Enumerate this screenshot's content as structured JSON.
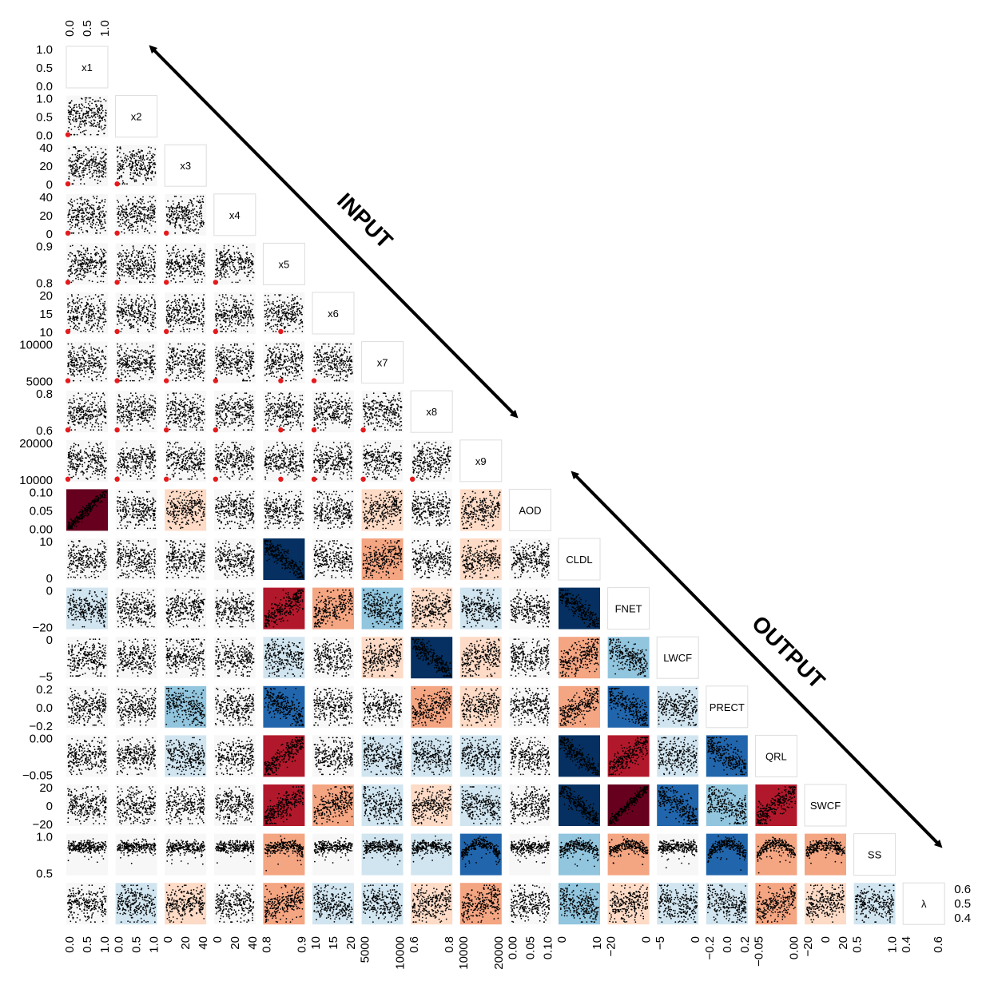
{
  "chart_data": {
    "type": "scatter",
    "variables": [
      "x1",
      "x2",
      "x3",
      "x4",
      "x5",
      "x6",
      "x7",
      "x8",
      "x9",
      "AOD",
      "CLDL",
      "FNET",
      "LWCF",
      "PRECT",
      "QRL",
      "SWCF",
      "SS",
      "λ"
    ],
    "ticks": [
      [
        "0.0",
        "0.5",
        "1.0"
      ],
      [
        "0.0",
        "0.5",
        "1.0"
      ],
      [
        "0",
        "20",
        "40"
      ],
      [
        "0",
        "20",
        "40"
      ],
      [
        "0.8",
        "0.9"
      ],
      [
        "10",
        "15",
        "20"
      ],
      [
        "5000",
        "10000"
      ],
      [
        "0.6",
        "0.8"
      ],
      [
        "10000",
        "20000"
      ],
      [
        "0.00",
        "0.05",
        "0.10"
      ],
      [
        "0",
        "10"
      ],
      [
        "−20",
        "0"
      ],
      [
        "−5",
        "0"
      ],
      [
        "−0.2",
        "0.0",
        "0.2"
      ],
      [
        "−0.05",
        "0.00"
      ],
      [
        "−20",
        "0",
        "20"
      ],
      [
        "0.5",
        "1.0"
      ],
      [
        "0.4",
        "0.5",
        "0.6"
      ]
    ],
    "correlation_matrix_lower": {
      "AOD": [
        0.95,
        0.0,
        0.2,
        0.0,
        0.05,
        0.0,
        0.15,
        0.0,
        0.1
      ],
      "CLDL": [
        0.0,
        0.0,
        0.0,
        0.0,
        -0.8,
        -0.05,
        0.3,
        0.0,
        0.2,
        0.0
      ],
      "FNET": [
        -0.1,
        0.0,
        0.0,
        0.0,
        0.7,
        0.4,
        -0.3,
        0.1,
        -0.1,
        -0.05,
        -0.8
      ],
      "LWCF": [
        0.0,
        0.0,
        0.0,
        0.0,
        -0.2,
        0.0,
        0.2,
        -0.8,
        0.2,
        -0.05,
        0.45,
        -0.45
      ],
      "PRECT": [
        0.05,
        0.0,
        -0.35,
        0.0,
        -0.6,
        0.0,
        -0.05,
        0.3,
        0.2,
        0.0,
        0.5,
        -0.6,
        -0.1
      ],
      "QRL": [
        0.0,
        0.0,
        -0.1,
        0.05,
        0.8,
        0.0,
        -0.2,
        -0.1,
        -0.1,
        0.0,
        -0.85,
        0.7,
        -0.15,
        -0.6
      ],
      "SWCF": [
        -0.05,
        0.0,
        -0.05,
        0.0,
        0.7,
        0.35,
        -0.2,
        0.15,
        -0.1,
        0.0,
        -0.85,
        0.95,
        -0.6,
        -0.4,
        0.7
      ],
      "SS": [
        0.0,
        0.05,
        0.05,
        0.0,
        0.3,
        0.05,
        -0.1,
        -0.15,
        -0.6,
        0.0,
        -0.35,
        0.3,
        0.05,
        -0.6,
        0.5,
        0.35
      ],
      "λ": [
        0.0,
        -0.1,
        0.1,
        0.0,
        0.4,
        -0.2,
        -0.1,
        0.15,
        0.3,
        -0.05,
        -0.3,
        0.2,
        -0.1,
        -0.2,
        0.3,
        0.2,
        -0.1
      ]
    },
    "highlighted_point_columns": [
      "x1",
      "x2",
      "x3",
      "x4",
      "x5",
      "x6",
      "x7",
      "x8"
    ],
    "grid": false,
    "legend": "none"
  },
  "annotations": {
    "input_label": "INPUT",
    "output_label": "OUTPUT"
  },
  "colors": {
    "strong_positive": "#67001f",
    "positive": "#b2182b",
    "moderate_positive": "#f4a582",
    "weak_positive": "#fddbc7",
    "neutral": "#f7f7f7",
    "weak_negative": "#d1e5f0",
    "moderate_negative": "#92c5de",
    "negative": "#2166ac",
    "strong_negative": "#053061",
    "highlight": "#e41a1c"
  }
}
